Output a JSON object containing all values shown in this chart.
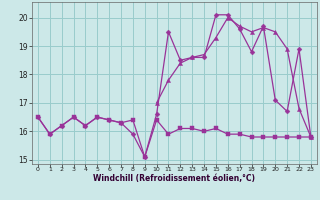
{
  "xlabel": "Windchill (Refroidissement éolien,°C)",
  "bg_color": "#cce8e8",
  "grid_color": "#99cccc",
  "line_color": "#993399",
  "xlim": [
    -0.5,
    23.5
  ],
  "ylim": [
    14.85,
    20.55
  ],
  "yticks": [
    15,
    16,
    17,
    18,
    19,
    20
  ],
  "xticks": [
    0,
    1,
    2,
    3,
    4,
    5,
    6,
    7,
    8,
    9,
    10,
    11,
    12,
    13,
    14,
    15,
    16,
    17,
    18,
    19,
    20,
    21,
    22,
    23
  ],
  "s1_x": [
    0,
    1,
    2,
    3,
    4,
    5,
    6,
    7,
    8,
    9,
    10,
    11,
    12,
    13,
    14,
    15,
    16,
    17,
    18,
    19,
    20,
    21,
    22,
    23
  ],
  "s1_y": [
    16.5,
    15.9,
    16.2,
    16.5,
    16.2,
    16.5,
    16.4,
    16.3,
    16.4,
    15.1,
    16.4,
    15.9,
    16.1,
    16.1,
    16.0,
    16.1,
    15.9,
    15.9,
    15.8,
    15.8,
    15.8,
    15.8,
    15.8,
    15.8
  ],
  "s2_x": [
    0,
    1,
    2,
    3,
    4,
    5,
    6,
    7,
    8,
    9,
    10,
    11,
    12,
    13,
    14,
    15,
    16,
    17,
    18,
    19,
    20,
    21,
    22,
    23
  ],
  "s2_y": [
    16.5,
    15.9,
    16.2,
    16.5,
    16.2,
    16.5,
    16.4,
    16.3,
    15.9,
    15.1,
    16.6,
    19.5,
    18.5,
    18.6,
    18.6,
    20.1,
    20.1,
    19.6,
    18.8,
    19.7,
    17.1,
    16.7,
    18.9,
    15.8
  ],
  "s3_x": [
    10,
    11,
    12,
    13,
    14,
    15,
    16,
    17,
    18,
    19,
    20,
    21,
    22,
    23
  ],
  "s3_y": [
    17.0,
    17.8,
    18.4,
    18.6,
    18.7,
    19.3,
    20.0,
    19.7,
    19.5,
    19.65,
    19.5,
    18.9,
    16.8,
    15.8
  ]
}
